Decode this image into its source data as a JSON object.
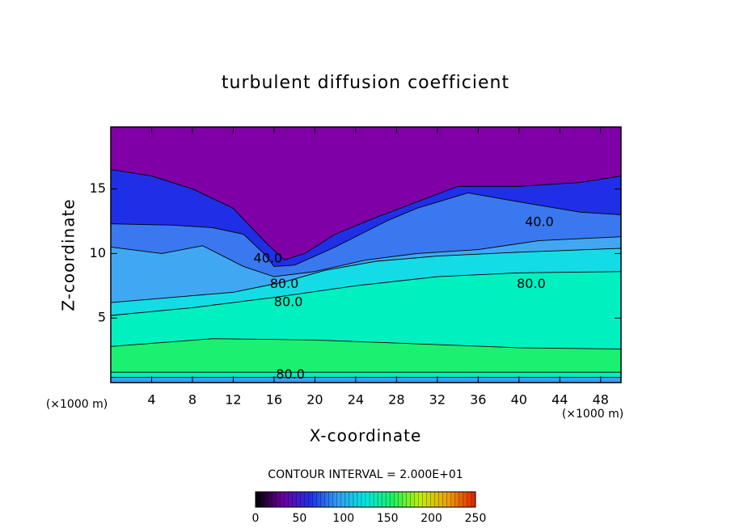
{
  "chart_data": {
    "type": "contourf",
    "title": "turbulent diffusion coefficient",
    "x_label": "X-coordinate",
    "y_label": "Z-coordinate",
    "x_unit": "(×1000 m)",
    "y_unit": "(×1000 m)",
    "xlim": [
      0,
      50
    ],
    "ylim": [
      0,
      19.8
    ],
    "xticks": [
      4,
      8,
      12,
      16,
      20,
      24,
      28,
      32,
      36,
      40,
      44,
      48
    ],
    "yticks": [
      5,
      10,
      15
    ],
    "regions": [
      {
        "level": 0,
        "color": "#7e00a6",
        "points": [
          [
            0,
            0
          ],
          [
            50,
            0
          ],
          [
            50,
            19.8
          ],
          [
            0,
            19.8
          ]
        ]
      },
      {
        "level": 20,
        "color": "#1f2fe6",
        "points": [
          [
            0,
            16.5
          ],
          [
            4,
            16
          ],
          [
            8,
            15
          ],
          [
            12,
            13.5
          ],
          [
            15,
            11
          ],
          [
            17,
            9.5
          ],
          [
            19,
            10
          ],
          [
            22,
            11.5
          ],
          [
            26,
            12.8
          ],
          [
            30,
            14
          ],
          [
            34,
            15.2
          ],
          [
            40,
            15.2
          ],
          [
            46,
            15.5
          ],
          [
            50,
            16
          ],
          [
            50,
            0
          ],
          [
            0,
            0
          ]
        ]
      },
      {
        "level": 40,
        "color": "#3a78f0",
        "points": [
          [
            0,
            12.3
          ],
          [
            6,
            12.2
          ],
          [
            10,
            12
          ],
          [
            13,
            11.5
          ],
          [
            15,
            10
          ],
          [
            16,
            9
          ],
          [
            18,
            9.1
          ],
          [
            22,
            10.5
          ],
          [
            27,
            12.5
          ],
          [
            30,
            13.5
          ],
          [
            35,
            14.7
          ],
          [
            40,
            14
          ],
          [
            46,
            13.2
          ],
          [
            50,
            13
          ],
          [
            50,
            0
          ],
          [
            0,
            0
          ]
        ]
      },
      {
        "level": 60,
        "color": "#40a8f2",
        "points": [
          [
            0,
            10.5
          ],
          [
            5,
            10
          ],
          [
            9,
            10.6
          ],
          [
            13,
            9
          ],
          [
            16,
            8.2
          ],
          [
            20,
            8.6
          ],
          [
            25,
            9.5
          ],
          [
            30,
            10
          ],
          [
            36,
            10.3
          ],
          [
            42,
            11
          ],
          [
            50,
            11.3
          ],
          [
            50,
            0
          ],
          [
            0,
            0
          ]
        ]
      },
      {
        "level": 80,
        "color": "#14dce6",
        "points": [
          [
            0,
            6.2
          ],
          [
            6,
            6.6
          ],
          [
            12,
            7
          ],
          [
            17,
            7.8
          ],
          [
            21,
            8.7
          ],
          [
            26,
            9.4
          ],
          [
            32,
            9.8
          ],
          [
            40,
            10.1
          ],
          [
            50,
            10.4
          ],
          [
            50,
            0
          ],
          [
            0,
            0
          ]
        ]
      },
      {
        "level": 100,
        "color": "#00f0c0",
        "points": [
          [
            0,
            5.2
          ],
          [
            8,
            5.8
          ],
          [
            16,
            6.6
          ],
          [
            24,
            7.5
          ],
          [
            32,
            8.2
          ],
          [
            40,
            8.5
          ],
          [
            50,
            8.6
          ],
          [
            50,
            0
          ],
          [
            0,
            0
          ]
        ]
      },
      {
        "level": 120,
        "color": "#1cf070",
        "points": [
          [
            0,
            2.8
          ],
          [
            10,
            3.4
          ],
          [
            20,
            3.3
          ],
          [
            30,
            3
          ],
          [
            40,
            2.7
          ],
          [
            50,
            2.6
          ],
          [
            50,
            0.8
          ],
          [
            0,
            0.8
          ]
        ]
      },
      {
        "level": 60,
        "color": "#3c9cf0",
        "points": [
          [
            0,
            0.4
          ],
          [
            50,
            0.4
          ],
          [
            50,
            0
          ],
          [
            0,
            0
          ]
        ]
      }
    ],
    "contour_labels": [
      {
        "value": 40,
        "label": "40.0",
        "x": 42,
        "z": 12.4
      },
      {
        "value": 40,
        "label": "40.0",
        "x": 15.4,
        "z": 9.6
      },
      {
        "value": 80,
        "label": "80.0",
        "x": 17,
        "z": 7.6
      },
      {
        "value": 80,
        "label": "80.0",
        "x": 17.4,
        "z": 6.2
      },
      {
        "value": 80,
        "label": "80.0",
        "x": 41.2,
        "z": 7.6
      },
      {
        "value": 80,
        "label": "80.0",
        "x": 17.6,
        "z": 0.6
      }
    ],
    "contour_interval": "CONTOUR INTERVAL = 2.000E+01",
    "colorbar": {
      "lim": [
        0,
        250
      ],
      "ticks": [
        0,
        50,
        100,
        150,
        200,
        250
      ],
      "colors": [
        "#000000",
        "#6a00a0",
        "#2030e8",
        "#30a0f0",
        "#00e8e0",
        "#20f060",
        "#c0f000",
        "#f0a000",
        "#e02000"
      ]
    }
  }
}
